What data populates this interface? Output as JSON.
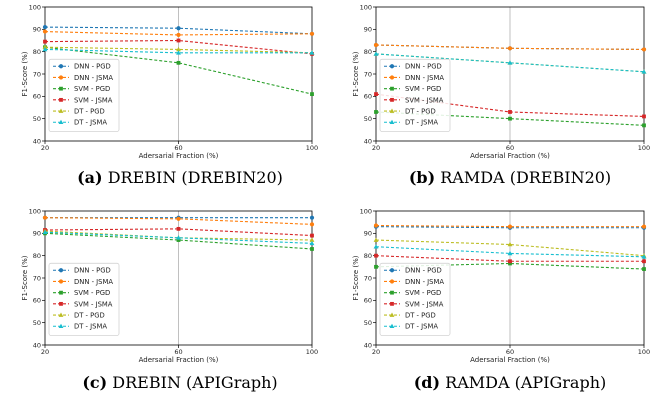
{
  "chart_data": [
    {
      "type": "line",
      "caption_label": "(a)",
      "caption_text": " DREBIN (DREBIN20)",
      "xlabel": "Adersarial Fraction (%)",
      "ylabel": "F1-Score (%)",
      "x": [
        20,
        60,
        100
      ],
      "xticks": [
        20,
        60,
        100
      ],
      "yticks": [
        40,
        50,
        60,
        70,
        80,
        90,
        100
      ],
      "ylim": [
        40,
        100
      ],
      "grid": "vertical",
      "legend_position": "center-left",
      "series": [
        {
          "name": "DNN - PGD",
          "color": "#1f77b4",
          "marker": "circle",
          "values": [
            91,
            90.5,
            88
          ]
        },
        {
          "name": "DNN - JSMA",
          "color": "#ff7f0e",
          "marker": "circle",
          "values": [
            89,
            87.5,
            88
          ]
        },
        {
          "name": "SVM - PGD",
          "color": "#2ca02c",
          "marker": "square",
          "values": [
            82,
            75,
            61
          ]
        },
        {
          "name": "SVM - JSMA",
          "color": "#d62728",
          "marker": "square",
          "values": [
            84.5,
            85,
            79
          ]
        },
        {
          "name": "DT - PGD",
          "color": "#bcbd22",
          "marker": "triangle",
          "values": [
            82,
            81,
            79.5
          ]
        },
        {
          "name": "DT - JSMA",
          "color": "#17becf",
          "marker": "triangle",
          "values": [
            81,
            79.5,
            79.5
          ]
        }
      ]
    },
    {
      "type": "line",
      "caption_label": "(b)",
      "caption_text": " RAMDA (DREBIN20)",
      "xlabel": "Adersarial Fraction (%)",
      "ylabel": "F1-Score (%)",
      "x": [
        20,
        60,
        100
      ],
      "xticks": [
        20,
        60,
        100
      ],
      "yticks": [
        40,
        50,
        60,
        70,
        80,
        90,
        100
      ],
      "ylim": [
        40,
        100
      ],
      "grid": "vertical",
      "legend_position": "center-left",
      "series": [
        {
          "name": "DNN - PGD",
          "color": "#1f77b4",
          "marker": "circle",
          "values": [
            83,
            81.5,
            81
          ]
        },
        {
          "name": "DNN - JSMA",
          "color": "#ff7f0e",
          "marker": "circle",
          "values": [
            83,
            81.5,
            81
          ]
        },
        {
          "name": "SVM - PGD",
          "color": "#2ca02c",
          "marker": "square",
          "values": [
            53,
            50,
            47
          ]
        },
        {
          "name": "SVM - JSMA",
          "color": "#d62728",
          "marker": "square",
          "values": [
            61,
            53,
            51
          ]
        },
        {
          "name": "DT - PGD",
          "color": "#bcbd22",
          "marker": "triangle",
          "values": [
            79,
            75,
            71
          ]
        },
        {
          "name": "DT - JSMA",
          "color": "#17becf",
          "marker": "triangle",
          "values": [
            79,
            75,
            71
          ]
        }
      ]
    },
    {
      "type": "line",
      "caption_label": "(c)",
      "caption_text": " DREBIN (APIGraph)",
      "xlabel": "Adersarial Fraction (%)",
      "ylabel": "F1-Score (%)",
      "x": [
        20,
        60,
        100
      ],
      "xticks": [
        20,
        60,
        100
      ],
      "yticks": [
        40,
        50,
        60,
        70,
        80,
        90,
        100
      ],
      "ylim": [
        40,
        100
      ],
      "grid": "vertical",
      "legend_position": "center-left",
      "series": [
        {
          "name": "DNN - PGD",
          "color": "#1f77b4",
          "marker": "circle",
          "values": [
            97,
            97,
            97
          ]
        },
        {
          "name": "DNN - JSMA",
          "color": "#ff7f0e",
          "marker": "circle",
          "values": [
            97,
            96.5,
            94
          ]
        },
        {
          "name": "SVM - PGD",
          "color": "#2ca02c",
          "marker": "square",
          "values": [
            90,
            87,
            83
          ]
        },
        {
          "name": "SVM - JSMA",
          "color": "#d62728",
          "marker": "square",
          "values": [
            91.5,
            92,
            89
          ]
        },
        {
          "name": "DT - PGD",
          "color": "#bcbd22",
          "marker": "triangle",
          "values": [
            91,
            88,
            87
          ]
        },
        {
          "name": "DT - JSMA",
          "color": "#17becf",
          "marker": "triangle",
          "values": [
            90.5,
            88,
            85.5
          ]
        }
      ]
    },
    {
      "type": "line",
      "caption_label": "(d)",
      "caption_text": " RAMDA (APIGraph)",
      "xlabel": "Adersarial Fraction (%)",
      "ylabel": "F1-Score (%)",
      "x": [
        20,
        60,
        100
      ],
      "xticks": [
        20,
        60,
        100
      ],
      "yticks": [
        40,
        50,
        60,
        70,
        80,
        90,
        100
      ],
      "ylim": [
        40,
        100
      ],
      "grid": "vertical",
      "legend_position": "center-left",
      "series": [
        {
          "name": "DNN - PGD",
          "color": "#1f77b4",
          "marker": "circle",
          "values": [
            93,
            92.5,
            92.5
          ]
        },
        {
          "name": "DNN - JSMA",
          "color": "#ff7f0e",
          "marker": "circle",
          "values": [
            93.5,
            93,
            93
          ]
        },
        {
          "name": "SVM - PGD",
          "color": "#2ca02c",
          "marker": "square",
          "values": [
            75,
            76.5,
            74
          ]
        },
        {
          "name": "SVM - JSMA",
          "color": "#d62728",
          "marker": "square",
          "values": [
            80,
            77.5,
            77.5
          ]
        },
        {
          "name": "DT - PGD",
          "color": "#bcbd22",
          "marker": "triangle",
          "values": [
            87,
            85,
            80
          ]
        },
        {
          "name": "DT - JSMA",
          "color": "#17becf",
          "marker": "triangle",
          "values": [
            84,
            81,
            79.5
          ]
        }
      ]
    }
  ]
}
